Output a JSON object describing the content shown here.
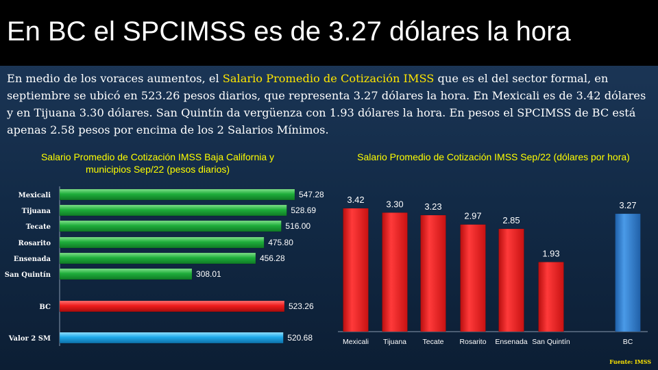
{
  "slide": {
    "title": "En BC el SPCIMSS es de 3.27 dólares la hora",
    "paragraph": {
      "pre": "En medio de los voraces aumentos, el ",
      "highlight": "Salario Promedio de Cotización IMSS",
      "post": " que es el del sector formal, en septiembre se ubicó en 523.26 pesos diarios, que representa 3.27 dólares la hora. En Mexicali  es de 3.42 dólares y en Tijuana 3.30 dólares. San Quintín da vergüenza con 1.93 dólares la hora. En pesos el SPCIMSS  de BC está apenas 2.58 pesos por encima de los 2 Salarios Mínimos."
    },
    "source": "Fuente: IMSS"
  },
  "colors": {
    "green": "#1fae3b",
    "red": "#ee1c1c",
    "cyan": "#1ea8e8",
    "blue": "#2e7fd0",
    "title_yellow": "#ffff00"
  },
  "chart_data": [
    {
      "type": "bar",
      "orientation": "horizontal",
      "title": "Salario Promedio de Cotización IMSS Baja California y municipios Sep/22 (pesos diarios)",
      "categories": [
        "Mexicali",
        "Tijuana",
        "Tecate",
        "Rosarito",
        "Ensenada",
        "San Quintín",
        "BC",
        "Valor 2 SM"
      ],
      "values": [
        547.28,
        528.69,
        516.0,
        475.8,
        456.28,
        308.01,
        523.26,
        520.68
      ],
      "value_labels": [
        "547.28",
        "528.69",
        "516.00",
        "475.80",
        "456.28",
        "308.01",
        "523.26",
        "520.68"
      ],
      "bar_colors": [
        "green",
        "green",
        "green",
        "green",
        "green",
        "green",
        "red",
        "cyan"
      ],
      "grid": false
    },
    {
      "type": "bar",
      "orientation": "vertical",
      "title": "Salario Promedio de Cotización IMSS  Sep/22 (dólares por hora)",
      "categories": [
        "Mexicali",
        "Tijuana",
        "Tecate",
        "Rosarito",
        "Ensenada",
        "San Quintín",
        "BC"
      ],
      "values": [
        3.42,
        3.3,
        3.23,
        2.97,
        2.85,
        1.93,
        3.27
      ],
      "value_labels": [
        "3.42",
        "3.30",
        "3.23",
        "2.97",
        "2.85",
        "1.93",
        "3.27"
      ],
      "bar_colors": [
        "red",
        "red",
        "red",
        "red",
        "red",
        "red",
        "blue"
      ],
      "grid": false
    }
  ]
}
